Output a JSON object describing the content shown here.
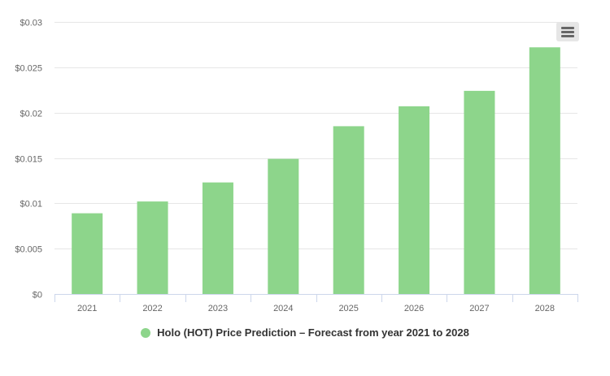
{
  "menu": {
    "icon": "hamburger-menu-icon"
  },
  "legend": {
    "label": "Holo (HOT) Price Prediction – Forecast from year 2021 to 2028"
  },
  "colors": {
    "series": "#8dd58b",
    "grid": "#e6e6e6",
    "axis": "#ccd6eb",
    "text": "#333333"
  },
  "chart_data": {
    "type": "bar",
    "title": "",
    "xlabel": "",
    "ylabel": "",
    "categories": [
      "2021",
      "2022",
      "2023",
      "2024",
      "2025",
      "2026",
      "2027",
      "2028"
    ],
    "series": [
      {
        "name": "Holo (HOT) Price Prediction – Forecast from year 2021 to 2028",
        "values": [
          0.0089,
          0.0102,
          0.0123,
          0.0149,
          0.0185,
          0.0207,
          0.0224,
          0.0272
        ]
      }
    ],
    "ylim": [
      0,
      0.03
    ],
    "yticks": [
      0,
      0.005,
      0.01,
      0.015,
      0.02,
      0.025,
      0.03
    ],
    "ytick_labels": [
      "$0",
      "$0.005",
      "$0.01",
      "$0.015",
      "$0.02",
      "$0.025",
      "$0.03"
    ],
    "grid": true,
    "legend_position": "bottom"
  }
}
